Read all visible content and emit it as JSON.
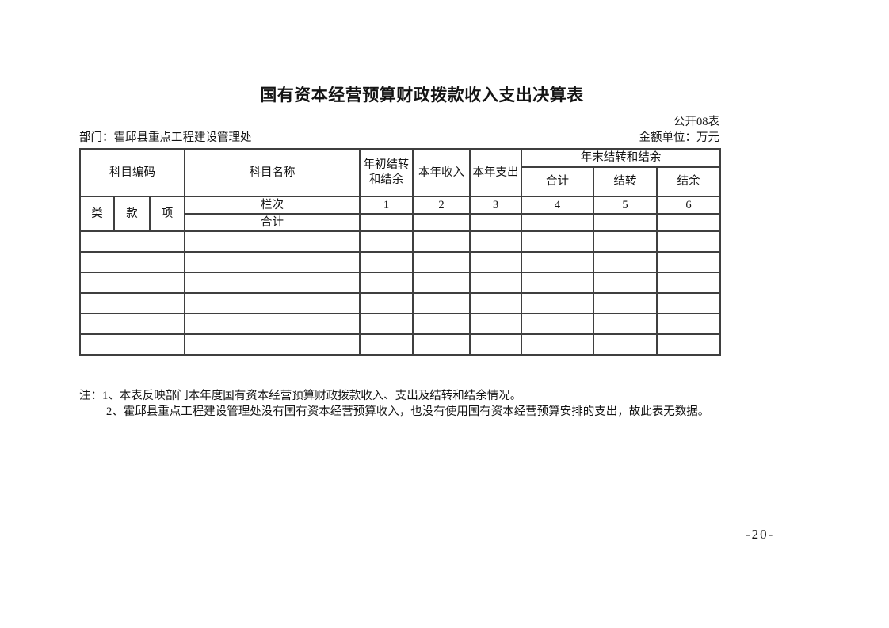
{
  "page": {
    "title": "国有资本经营预算财政拨款收入支出决算表",
    "form_code": "公开08表",
    "department": "部门：霍邱县重点工程建设管理处",
    "amount_unit": "金额单位：万元",
    "page_number": "-20-"
  },
  "table": {
    "header": {
      "subject_code": "科目编码",
      "subject_name": "科目名称",
      "beginning_carryover": "年初结转和结余",
      "current_year_income": "本年收入",
      "current_year_expenditure": "本年支出",
      "yearend_carryover_group": "年末结转和结余",
      "yearend_total": "合计",
      "yearend_carryover": "结转",
      "yearend_surplus": "结余",
      "code_class": "类",
      "code_section": "款",
      "code_item": "项",
      "column_index_label": "栏次",
      "column_numbers": [
        "1",
        "2",
        "3",
        "4",
        "5",
        "6"
      ],
      "total_row_label": "合计"
    },
    "total_row_values": [
      "",
      "",
      "",
      "",
      "",
      ""
    ],
    "empty_row_count": 6
  },
  "notes": {
    "label": "注：",
    "line1": "1、本表反映部门本年度国有资本经营预算财政拨款收入、支出及结转和结余情况。",
    "line2": "2、霍邱县重点工程建设管理处没有国有资本经营预算收入，也没有使用国有资本经营预算安排的支出，故此表无数据。"
  }
}
